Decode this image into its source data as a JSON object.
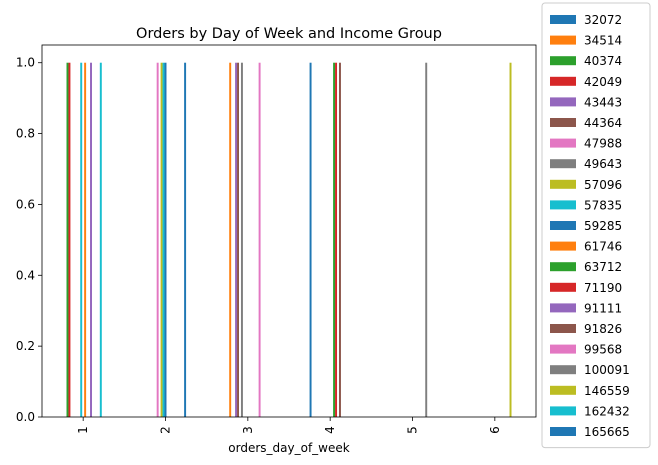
{
  "chart_data": {
    "type": "bar",
    "title": "Orders by Day of Week and Income Group",
    "xlabel": "orders_day_of_week",
    "ylabel": "",
    "ylim": [
      0,
      1.05
    ],
    "yticks": [
      "0.0",
      "0.2",
      "0.4",
      "0.6",
      "0.8",
      "1.0"
    ],
    "categories": [
      "1",
      "2",
      "3",
      "4",
      "5",
      "6"
    ],
    "grid": false,
    "legend_position": "right, outside plot area",
    "series": [
      {
        "name": "32072",
        "color": "#1f77b4",
        "values": [
          0,
          0,
          0,
          1,
          0,
          0
        ]
      },
      {
        "name": "34514",
        "color": "#ff7f0e",
        "values": [
          0,
          0,
          1,
          0,
          0,
          0
        ]
      },
      {
        "name": "40374",
        "color": "#2ca02c",
        "values": [
          1,
          0,
          0,
          0,
          0,
          0
        ]
      },
      {
        "name": "42049",
        "color": "#d62728",
        "values": [
          1,
          0,
          0,
          0,
          0,
          0
        ]
      },
      {
        "name": "43443",
        "color": "#9467bd",
        "values": [
          0,
          0,
          1,
          0,
          0,
          0
        ]
      },
      {
        "name": "44364",
        "color": "#8c564b",
        "values": [
          0,
          0,
          1,
          0,
          0,
          0
        ]
      },
      {
        "name": "47988",
        "color": "#e377c2",
        "values": [
          0,
          1,
          0,
          0,
          0,
          0
        ]
      },
      {
        "name": "49643",
        "color": "#7f7f7f",
        "values": [
          0,
          0,
          1,
          0,
          0,
          0
        ]
      },
      {
        "name": "57096",
        "color": "#bcbd22",
        "values": [
          0,
          1,
          0,
          0,
          0,
          0
        ]
      },
      {
        "name": "57835",
        "color": "#17becf",
        "values": [
          1,
          1,
          0,
          0,
          0,
          0
        ]
      },
      {
        "name": "59285",
        "color": "#1f77b4",
        "values": [
          0,
          1,
          0,
          0,
          0,
          0
        ]
      },
      {
        "name": "61746",
        "color": "#ff7f0e",
        "values": [
          1,
          0,
          0,
          0,
          0,
          0
        ]
      },
      {
        "name": "63712",
        "color": "#2ca02c",
        "values": [
          0,
          0,
          0,
          1,
          0,
          0
        ]
      },
      {
        "name": "71190",
        "color": "#d62728",
        "values": [
          0,
          0,
          0,
          1,
          0,
          0
        ]
      },
      {
        "name": "91111",
        "color": "#9467bd",
        "values": [
          1,
          0,
          0,
          0,
          0,
          0
        ]
      },
      {
        "name": "91826",
        "color": "#8c564b",
        "values": [
          0,
          0,
          0,
          1,
          0,
          0
        ]
      },
      {
        "name": "99568",
        "color": "#e377c2",
        "values": [
          0,
          0,
          1,
          0,
          0,
          0
        ]
      },
      {
        "name": "100091",
        "color": "#7f7f7f",
        "values": [
          0,
          0,
          0,
          0,
          1,
          0
        ]
      },
      {
        "name": "146559",
        "color": "#bcbd22",
        "values": [
          0,
          0,
          0,
          0,
          0,
          1
        ]
      },
      {
        "name": "162432",
        "color": "#17becf",
        "values": [
          1,
          0,
          0,
          0,
          0,
          0
        ]
      },
      {
        "name": "165665",
        "color": "#1f77b4",
        "values": [
          0,
          1,
          0,
          0,
          0,
          0
        ]
      }
    ]
  }
}
